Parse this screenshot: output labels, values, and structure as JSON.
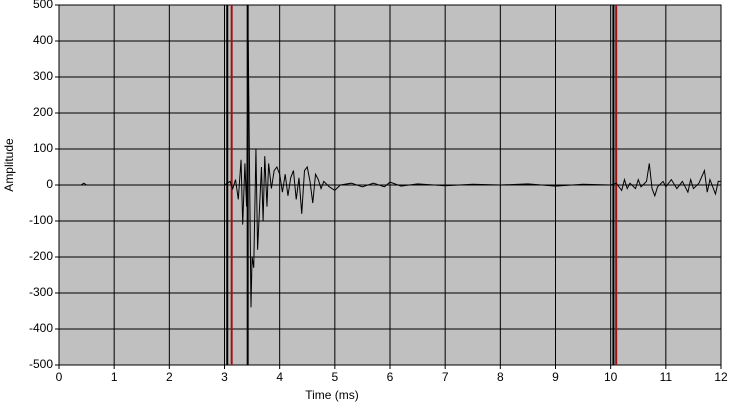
{
  "chart_data": {
    "type": "line",
    "x_label": "Time (ms)",
    "y_label": "Amplitude",
    "xlim": [
      0,
      12
    ],
    "xticks": [
      0,
      1,
      2,
      3,
      4,
      5,
      6,
      7,
      8,
      9,
      10,
      11,
      12
    ],
    "ylim": [
      -500,
      500
    ],
    "yticks": [
      -500,
      -400,
      -300,
      -200,
      -100,
      0,
      100,
      200,
      300,
      400,
      500
    ],
    "grid": true,
    "background": "#c0c0c0",
    "cursors": [
      {
        "x": 3.05,
        "color": "#000000"
      },
      {
        "x": 3.13,
        "color": "#a01010"
      },
      {
        "x": 3.42,
        "color": "#000000"
      },
      {
        "x": 10.05,
        "color": "#000000"
      },
      {
        "x": 10.1,
        "color": "#a01010"
      }
    ],
    "series": [
      {
        "color": "#000000",
        "x": [
          0,
          0.4,
          0.45,
          0.5,
          3.0,
          3.1,
          3.15,
          3.2,
          3.25,
          3.3,
          3.33,
          3.37,
          3.4,
          3.43,
          3.46,
          3.48,
          3.5,
          3.53,
          3.57,
          3.6,
          3.63,
          3.67,
          3.7,
          3.73,
          3.77,
          3.8,
          3.85,
          3.9,
          3.95,
          4.0,
          4.05,
          4.1,
          4.15,
          4.2,
          4.25,
          4.3,
          4.35,
          4.4,
          4.45,
          4.5,
          4.55,
          4.6,
          4.65,
          4.7,
          4.75,
          4.8,
          4.9,
          5.0,
          5.1,
          5.3,
          5.5,
          5.7,
          5.9,
          6.0,
          6.2,
          6.5,
          7.0,
          7.5,
          8.0,
          8.5,
          9.0,
          9.5,
          10.0,
          10.1,
          10.2,
          10.25,
          10.3,
          10.35,
          10.45,
          10.5,
          10.55,
          10.65,
          10.7,
          10.75,
          10.8,
          10.85,
          10.95,
          11.0,
          11.1,
          11.2,
          11.3,
          11.4,
          11.45,
          11.5,
          11.6,
          11.7,
          11.75,
          11.8,
          11.9,
          11.95,
          12.0
        ],
        "values": [
          0,
          0,
          5,
          0,
          0,
          10,
          -10,
          15,
          -40,
          70,
          -110,
          60,
          -60,
          400,
          -50,
          -340,
          -200,
          -230,
          100,
          -180,
          -80,
          50,
          -100,
          80,
          -60,
          60,
          -10,
          40,
          50,
          30,
          -20,
          30,
          -30,
          20,
          40,
          -40,
          20,
          -80,
          40,
          50,
          10,
          -50,
          30,
          15,
          -10,
          10,
          -5,
          -15,
          0,
          5,
          -5,
          5,
          -5,
          8,
          -3,
          3,
          -2,
          2,
          0,
          3,
          -3,
          2,
          0,
          5,
          -15,
          15,
          -10,
          5,
          -10,
          15,
          -5,
          10,
          60,
          -10,
          -30,
          -5,
          10,
          -5,
          15,
          -10,
          10,
          -20,
          15,
          -10,
          5,
          40,
          -20,
          15,
          -25,
          10,
          10
        ]
      }
    ]
  }
}
